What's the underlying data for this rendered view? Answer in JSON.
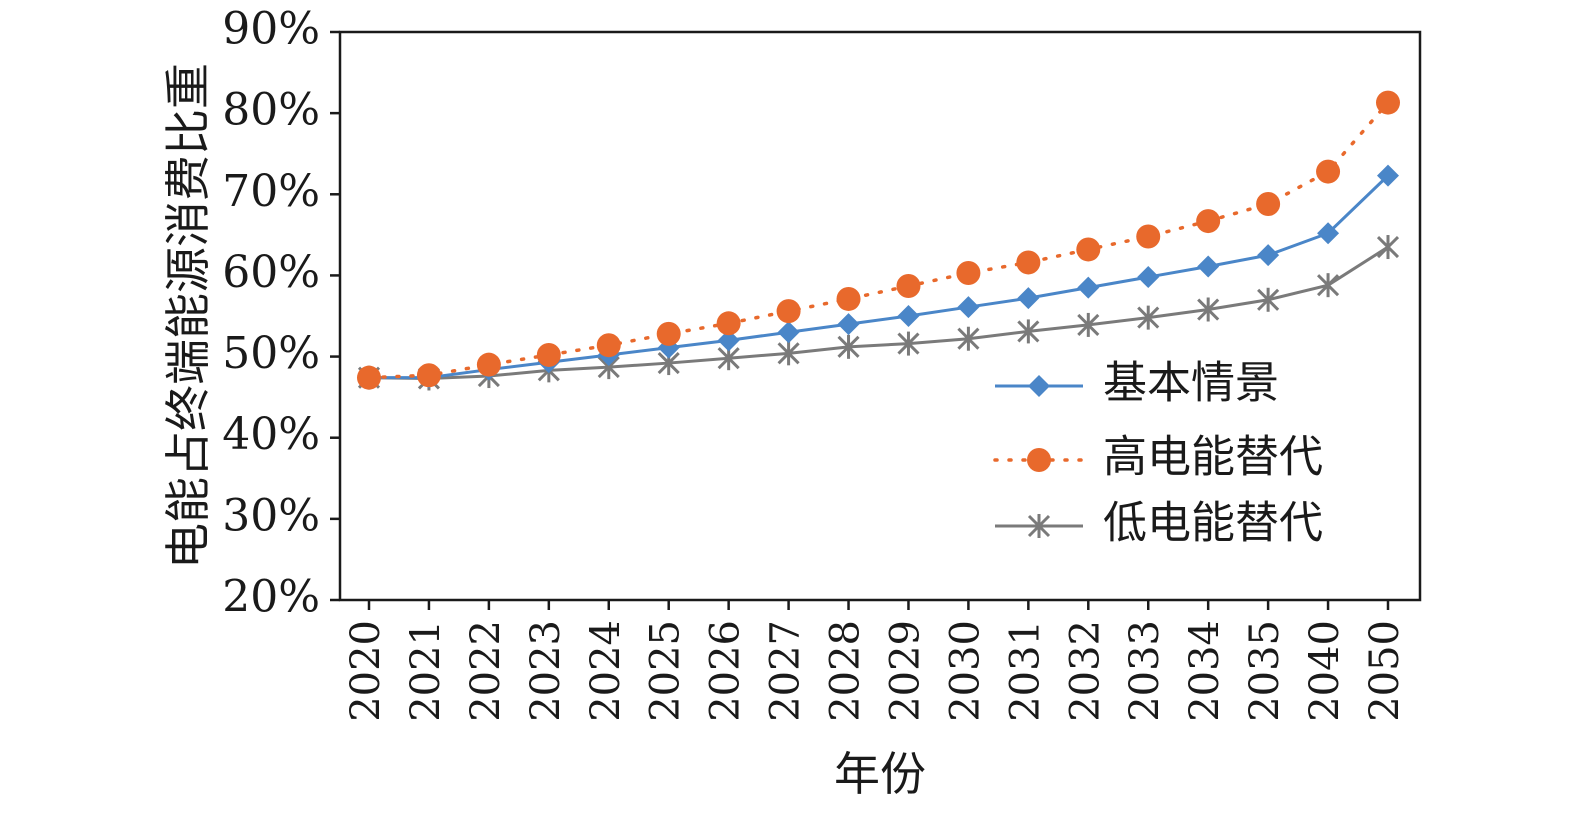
{
  "chart_data": {
    "type": "line",
    "title": "",
    "xlabel": "年份",
    "ylabel": "电能占终端能源消费比重",
    "ylim": [
      0.2,
      0.9
    ],
    "yticks": [
      "20%",
      "30%",
      "40%",
      "50%",
      "60%",
      "70%",
      "80%",
      "90%"
    ],
    "categories": [
      "2020",
      "2021",
      "2022",
      "2023",
      "2024",
      "2025",
      "2026",
      "2027",
      "2028",
      "2029",
      "2030",
      "2031",
      "2032",
      "2033",
      "2034",
      "2035",
      "2040",
      "2050"
    ],
    "grid": false,
    "legend_position": "center-right",
    "series": [
      {
        "name": "基本情景",
        "color": "#4a86c8",
        "line_style": "solid",
        "marker": "diamond",
        "values": [
          0.474,
          0.474,
          0.484,
          0.493,
          0.502,
          0.511,
          0.52,
          0.53,
          0.54,
          0.55,
          0.561,
          0.572,
          0.585,
          0.598,
          0.611,
          0.625,
          0.652,
          0.723
        ]
      },
      {
        "name": "高电能替代",
        "color": "#e8692c",
        "line_style": "dotted",
        "marker": "circle",
        "values": [
          0.474,
          0.477,
          0.49,
          0.502,
          0.514,
          0.528,
          0.541,
          0.556,
          0.571,
          0.587,
          0.603,
          0.616,
          0.632,
          0.648,
          0.667,
          0.688,
          0.728,
          0.813
        ]
      },
      {
        "name": "低电能替代",
        "color": "#7a7a7a",
        "line_style": "solid",
        "marker": "asterisk",
        "values": [
          0.474,
          0.473,
          0.476,
          0.483,
          0.487,
          0.492,
          0.498,
          0.504,
          0.512,
          0.516,
          0.522,
          0.531,
          0.539,
          0.548,
          0.558,
          0.57,
          0.588,
          0.635
        ]
      }
    ]
  }
}
